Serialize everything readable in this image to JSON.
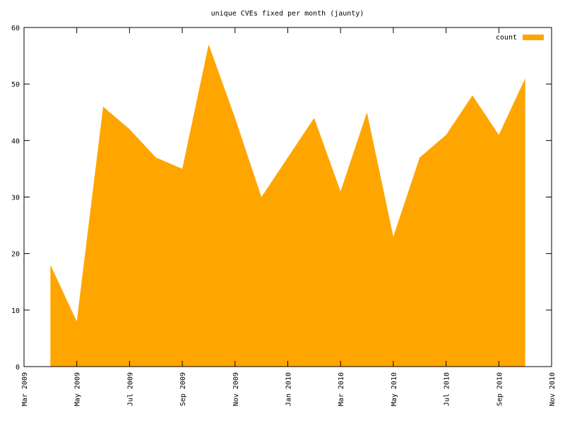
{
  "chart_data": {
    "type": "area",
    "title": "unique CVEs fixed per month (jaunty)",
    "x": [
      "2009-04",
      "2009-05",
      "2009-06",
      "2009-07",
      "2009-08",
      "2009-09",
      "2009-10",
      "2009-11",
      "2009-12",
      "2010-01",
      "2010-02",
      "2010-03",
      "2010-04",
      "2010-05",
      "2010-06",
      "2010-07",
      "2010-08",
      "2010-09",
      "2010-10"
    ],
    "series": [
      {
        "name": "count",
        "color": "#ffa500",
        "values": [
          18,
          8,
          46,
          42,
          37,
          35,
          57,
          44,
          30,
          37,
          44,
          31,
          45,
          23,
          37,
          41,
          48,
          41,
          51
        ]
      }
    ],
    "xlim": [
      "2009-03",
      "2010-11"
    ],
    "xticks": [
      {
        "value": "2009-03",
        "label": "Mar 2009"
      },
      {
        "value": "2009-05",
        "label": "May 2009"
      },
      {
        "value": "2009-07",
        "label": "Jul 2009"
      },
      {
        "value": "2009-09",
        "label": "Sep 2009"
      },
      {
        "value": "2009-11",
        "label": "Nov 2009"
      },
      {
        "value": "2010-01",
        "label": "Jan 2010"
      },
      {
        "value": "2010-03",
        "label": "Mar 2010"
      },
      {
        "value": "2010-05",
        "label": "May 2010"
      },
      {
        "value": "2010-07",
        "label": "Jul 2010"
      },
      {
        "value": "2010-09",
        "label": "Sep 2010"
      },
      {
        "value": "2010-11",
        "label": "Nov 2010"
      }
    ],
    "ylim": [
      0,
      60
    ],
    "yticks": [
      0,
      10,
      20,
      30,
      40,
      50,
      60
    ],
    "grid": false,
    "legend": "top-right"
  }
}
